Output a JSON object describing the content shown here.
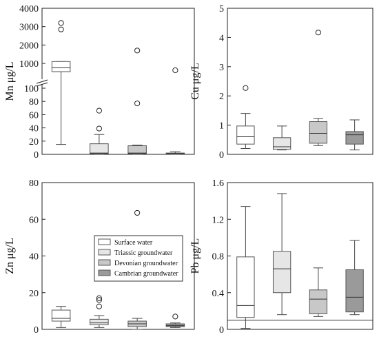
{
  "legend": {
    "entries": [
      {
        "label": "Surface water",
        "color": "#ffffff"
      },
      {
        "label": "Triassic groundwater",
        "color": "#e6e6e6"
      },
      {
        "label": "Devonian groundwater",
        "color": "#c8c8c8"
      },
      {
        "label": "Cambrian groundwater",
        "color": "#9a9a9a"
      }
    ]
  },
  "chart_data": [
    {
      "type": "box",
      "ylabel": "Mn μg/L",
      "scale": "broken",
      "ylim": [
        0,
        4000
      ],
      "yticks": [
        "0",
        "20",
        "40",
        "60",
        "80",
        "100",
        "1000",
        "2000",
        "3000",
        "4000"
      ],
      "series": [
        {
          "min": 15,
          "q1": 700,
          "median": 850,
          "q3": 1100,
          "max": 1100,
          "outliers": [
            2850,
            3200
          ]
        },
        {
          "min": 0,
          "q1": 1,
          "median": 2,
          "q3": 16,
          "max": 30,
          "outliers": [
            39,
            66
          ]
        },
        {
          "min": 0,
          "q1": 1,
          "median": 2,
          "q3": 13,
          "max": 14,
          "outliers": [
            77,
            1700
          ]
        },
        {
          "min": 0,
          "q1": 0.5,
          "median": 1,
          "q3": 2,
          "max": 4,
          "outliers": [
            750
          ]
        }
      ]
    },
    {
      "type": "box",
      "ylabel": "Cu μg/L",
      "ylim": [
        0,
        5
      ],
      "yticks": [
        "0",
        "1",
        "2",
        "3",
        "4",
        "5"
      ],
      "series": [
        {
          "min": 0.2,
          "q1": 0.35,
          "median": 0.6,
          "q3": 0.97,
          "max": 1.4,
          "outliers": [
            2.27
          ]
        },
        {
          "min": 0.15,
          "q1": 0.17,
          "median": 0.26,
          "q3": 0.57,
          "max": 0.97,
          "outliers": []
        },
        {
          "min": 0.3,
          "q1": 0.38,
          "median": 0.72,
          "q3": 1.12,
          "max": 1.23,
          "outliers": [
            4.17
          ]
        },
        {
          "min": 0.15,
          "q1": 0.35,
          "median": 0.67,
          "q3": 0.78,
          "max": 1.18,
          "outliers": []
        }
      ]
    },
    {
      "type": "box",
      "ylabel": "Zn μg/L",
      "ylim": [
        0,
        80
      ],
      "yticks": [
        "0",
        "20",
        "40",
        "60",
        "80"
      ],
      "series": [
        {
          "min": 1,
          "q1": 4.5,
          "median": 6,
          "q3": 10.5,
          "max": 12.5,
          "outliers": []
        },
        {
          "min": 1,
          "q1": 2.5,
          "median": 3.5,
          "q3": 5.5,
          "max": 7.5,
          "outliers": [
            12.5,
            16,
            17
          ]
        },
        {
          "min": 0,
          "q1": 1.5,
          "median": 3,
          "q3": 4.5,
          "max": 6,
          "outliers": [
            63.5
          ]
        },
        {
          "min": 1,
          "q1": 1.5,
          "median": 2,
          "q3": 3,
          "max": 3.5,
          "outliers": [
            7
          ]
        }
      ]
    },
    {
      "type": "box",
      "ylabel": "Pb μg/L",
      "ylim": [
        0,
        1.6
      ],
      "yticks": [
        "0",
        "0.4",
        "0.8",
        "1.2",
        "1.6"
      ],
      "hline": 0.1,
      "series": [
        {
          "min": 0.01,
          "q1": 0.13,
          "median": 0.26,
          "q3": 0.79,
          "max": 1.34,
          "outliers": []
        },
        {
          "min": 0.16,
          "q1": 0.4,
          "median": 0.66,
          "q3": 0.85,
          "max": 1.48,
          "outliers": []
        },
        {
          "min": 0.14,
          "q1": 0.17,
          "median": 0.33,
          "q3": 0.43,
          "max": 0.67,
          "outliers": []
        },
        {
          "min": 0.16,
          "q1": 0.19,
          "median": 0.35,
          "q3": 0.65,
          "max": 0.97,
          "outliers": []
        }
      ]
    }
  ]
}
